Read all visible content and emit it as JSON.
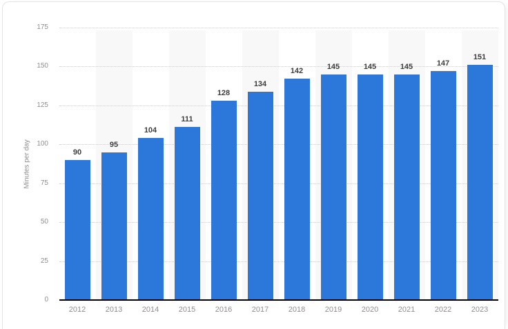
{
  "chart_data": {
    "type": "bar",
    "categories": [
      "2012",
      "2013",
      "2014",
      "2015",
      "2016",
      "2017",
      "2018",
      "2019",
      "2020",
      "2021",
      "2022",
      "2023"
    ],
    "values": [
      90,
      95,
      104,
      111,
      128,
      134,
      142,
      145,
      145,
      145,
      147,
      151
    ],
    "title": "",
    "xlabel": "",
    "ylabel": "Minutes per day",
    "ylim": [
      0,
      175
    ],
    "yticks": [
      0,
      25,
      50,
      75,
      100,
      125,
      150,
      175
    ],
    "grid": "horizontal-dotted",
    "legend_position": "none",
    "value_labels_shown": true,
    "striped_columns": "alternating",
    "colors": {
      "bar": "#2b77da",
      "stripe": "#f8f8f8",
      "gridline": "#cccccc",
      "axis_line": "#000000",
      "tick_label": "#8e8e8e",
      "value_label": "#3d3d3d",
      "card_border": "#e3e3e3",
      "background": "#ffffff"
    }
  }
}
